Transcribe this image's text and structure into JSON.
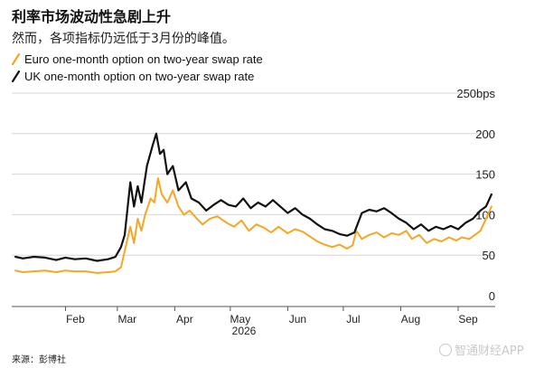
{
  "header": {
    "title": "利率市场波动性急剧上升",
    "subtitle": "然而，各项指标仍远低于3月份的峰值。"
  },
  "footer": {
    "source": "来源：彭博社",
    "watermark": "智通财经APP",
    "watermark_icon": "smartcircle-icon"
  },
  "chart_data": {
    "type": "line",
    "title": "利率市场波动性急剧上升",
    "subtitle": "然而，各项指标仍远低于3月份的峰值。",
    "x_axis": {
      "year_label": "2026",
      "tick_labels": [
        "Feb",
        "Mar",
        "Apr",
        "May",
        "Jun",
        "Jul",
        "Aug",
        "Sep"
      ],
      "tick_dates": [
        "2026-02-01",
        "2026-03-01",
        "2026-04-01",
        "2026-05-01",
        "2026-06-01",
        "2026-07-01",
        "2026-08-01",
        "2026-09-01"
      ],
      "range": [
        "2026-01-03",
        "2026-09-21"
      ]
    },
    "y_axis": {
      "ylim": [
        0,
        250
      ],
      "ticks": [
        0,
        50,
        100,
        150,
        200,
        250
      ],
      "tick_labels": [
        "0",
        "50",
        "100",
        "150",
        "200",
        "250bps"
      ],
      "grid": true
    },
    "legend": {
      "placement": "top-left"
    },
    "series": [
      {
        "name": "Euro one-month option on two-year swap rate",
        "color": "#f5a623",
        "points": [
          [
            "2026-01-05",
            31
          ],
          [
            "2026-01-09",
            29
          ],
          [
            "2026-01-15",
            30
          ],
          [
            "2026-01-21",
            31
          ],
          [
            "2026-01-27",
            29
          ],
          [
            "2026-02-01",
            31
          ],
          [
            "2026-02-06",
            30
          ],
          [
            "2026-02-12",
            30
          ],
          [
            "2026-02-18",
            28
          ],
          [
            "2026-02-24",
            29
          ],
          [
            "2026-02-28",
            30
          ],
          [
            "2026-03-03",
            35
          ],
          [
            "2026-03-05",
            55
          ],
          [
            "2026-03-08",
            85
          ],
          [
            "2026-03-10",
            65
          ],
          [
            "2026-03-12",
            95
          ],
          [
            "2026-03-14",
            80
          ],
          [
            "2026-03-16",
            100
          ],
          [
            "2026-03-19",
            120
          ],
          [
            "2026-03-21",
            115
          ],
          [
            "2026-03-23",
            145
          ],
          [
            "2026-03-25",
            125
          ],
          [
            "2026-03-28",
            115
          ],
          [
            "2026-03-31",
            130
          ],
          [
            "2026-04-03",
            110
          ],
          [
            "2026-04-06",
            100
          ],
          [
            "2026-04-09",
            105
          ],
          [
            "2026-04-13",
            95
          ],
          [
            "2026-04-16",
            88
          ],
          [
            "2026-04-20",
            95
          ],
          [
            "2026-04-24",
            98
          ],
          [
            "2026-04-29",
            90
          ],
          [
            "2026-05-03",
            85
          ],
          [
            "2026-05-07",
            93
          ],
          [
            "2026-05-11",
            80
          ],
          [
            "2026-05-15",
            88
          ],
          [
            "2026-05-19",
            84
          ],
          [
            "2026-05-23",
            78
          ],
          [
            "2026-05-27",
            85
          ],
          [
            "2026-06-01",
            77
          ],
          [
            "2026-06-05",
            82
          ],
          [
            "2026-06-09",
            79
          ],
          [
            "2026-06-13",
            73
          ],
          [
            "2026-06-17",
            67
          ],
          [
            "2026-06-21",
            63
          ],
          [
            "2026-06-25",
            60
          ],
          [
            "2026-06-29",
            63
          ],
          [
            "2026-07-03",
            58
          ],
          [
            "2026-07-06",
            62
          ],
          [
            "2026-07-08",
            80
          ],
          [
            "2026-07-11",
            70
          ],
          [
            "2026-07-15",
            75
          ],
          [
            "2026-07-19",
            78
          ],
          [
            "2026-07-23",
            72
          ],
          [
            "2026-07-27",
            77
          ],
          [
            "2026-07-31",
            75
          ],
          [
            "2026-08-04",
            80
          ],
          [
            "2026-08-07",
            70
          ],
          [
            "2026-08-11",
            75
          ],
          [
            "2026-08-15",
            65
          ],
          [
            "2026-08-19",
            70
          ],
          [
            "2026-08-23",
            67
          ],
          [
            "2026-08-27",
            72
          ],
          [
            "2026-08-31",
            68
          ],
          [
            "2026-09-03",
            72
          ],
          [
            "2026-09-07",
            70
          ],
          [
            "2026-09-10",
            75
          ],
          [
            "2026-09-13",
            80
          ],
          [
            "2026-09-16",
            95
          ],
          [
            "2026-09-19",
            110
          ]
        ]
      },
      {
        "name": "UK one-month option on two-year swap rate",
        "color": "#111111",
        "points": [
          [
            "2026-01-05",
            48
          ],
          [
            "2026-01-09",
            46
          ],
          [
            "2026-01-15",
            48
          ],
          [
            "2026-01-21",
            47
          ],
          [
            "2026-01-27",
            44
          ],
          [
            "2026-02-01",
            47
          ],
          [
            "2026-02-06",
            45
          ],
          [
            "2026-02-12",
            46
          ],
          [
            "2026-02-18",
            43
          ],
          [
            "2026-02-24",
            45
          ],
          [
            "2026-02-28",
            48
          ],
          [
            "2026-03-03",
            60
          ],
          [
            "2026-03-05",
            75
          ],
          [
            "2026-03-08",
            140
          ],
          [
            "2026-03-10",
            110
          ],
          [
            "2026-03-12",
            135
          ],
          [
            "2026-03-14",
            115
          ],
          [
            "2026-03-17",
            160
          ],
          [
            "2026-03-20",
            185
          ],
          [
            "2026-03-22",
            200
          ],
          [
            "2026-03-24",
            175
          ],
          [
            "2026-03-26",
            180
          ],
          [
            "2026-03-28",
            150
          ],
          [
            "2026-03-31",
            160
          ],
          [
            "2026-04-03",
            130
          ],
          [
            "2026-04-07",
            140
          ],
          [
            "2026-04-10",
            120
          ],
          [
            "2026-04-14",
            115
          ],
          [
            "2026-04-18",
            105
          ],
          [
            "2026-04-22",
            112
          ],
          [
            "2026-04-26",
            118
          ],
          [
            "2026-04-30",
            112
          ],
          [
            "2026-05-04",
            110
          ],
          [
            "2026-05-08",
            120
          ],
          [
            "2026-05-12",
            108
          ],
          [
            "2026-05-16",
            115
          ],
          [
            "2026-05-20",
            110
          ],
          [
            "2026-05-24",
            118
          ],
          [
            "2026-06-01",
            102
          ],
          [
            "2026-06-05",
            108
          ],
          [
            "2026-06-09",
            100
          ],
          [
            "2026-06-13",
            95
          ],
          [
            "2026-06-17",
            88
          ],
          [
            "2026-06-21",
            82
          ],
          [
            "2026-06-25",
            80
          ],
          [
            "2026-06-29",
            76
          ],
          [
            "2026-07-03",
            74
          ],
          [
            "2026-07-07",
            78
          ],
          [
            "2026-07-11",
            102
          ],
          [
            "2026-07-15",
            106
          ],
          [
            "2026-07-19",
            104
          ],
          [
            "2026-07-23",
            108
          ],
          [
            "2026-07-27",
            102
          ],
          [
            "2026-07-31",
            95
          ],
          [
            "2026-08-04",
            90
          ],
          [
            "2026-08-08",
            82
          ],
          [
            "2026-08-12",
            88
          ],
          [
            "2026-08-16",
            80
          ],
          [
            "2026-08-20",
            85
          ],
          [
            "2026-08-24",
            82
          ],
          [
            "2026-08-28",
            86
          ],
          [
            "2026-09-01",
            82
          ],
          [
            "2026-09-05",
            90
          ],
          [
            "2026-09-09",
            95
          ],
          [
            "2026-09-13",
            105
          ],
          [
            "2026-09-16",
            110
          ],
          [
            "2026-09-19",
            125
          ]
        ]
      }
    ]
  }
}
